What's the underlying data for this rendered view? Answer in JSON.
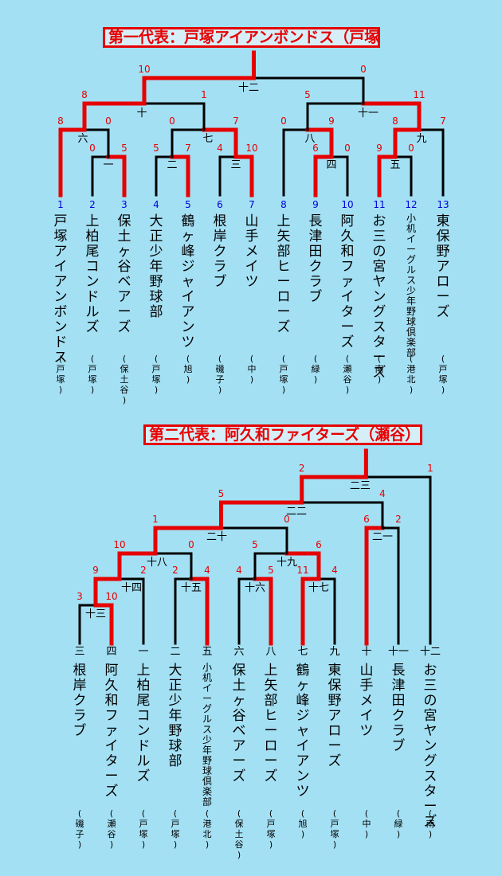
{
  "bracket1": {
    "title": "第一代表：戸塚アイアンボンドス（戸塚）",
    "teams": [
      {
        "no": "1",
        "name": "戸塚アイアンボンドス",
        "region": "(戸塚)"
      },
      {
        "no": "2",
        "name": "上柏尾コンドルズ",
        "region": "(戸塚)"
      },
      {
        "no": "3",
        "name": "保土ヶ谷ベアーズ",
        "region": "(保土谷)"
      },
      {
        "no": "4",
        "name": "大正少年野球部",
        "region": "(戸塚)"
      },
      {
        "no": "5",
        "name": "鶴ヶ峰ジャイアンツ",
        "region": "(旭)"
      },
      {
        "no": "6",
        "name": "根岸クラブ",
        "region": "(磯子)"
      },
      {
        "no": "7",
        "name": "山手メイツ",
        "region": "(中)"
      },
      {
        "no": "8",
        "name": "上矢部ヒーローズ",
        "region": "(戸塚)"
      },
      {
        "no": "9",
        "name": "長津田クラブ",
        "region": "(緑)"
      },
      {
        "no": "10",
        "name": "阿久和ファイターズ",
        "region": "(瀬谷)"
      },
      {
        "no": "11",
        "name": "お三の宮ヤングスターズ",
        "region": "(南)"
      },
      {
        "no": "12",
        "name": "小机イーグルス少年野球倶楽部",
        "region": "(港北)"
      },
      {
        "no": "13",
        "name": "東保野アローズ",
        "region": "(戸塚)"
      }
    ],
    "games": [
      {
        "no": "一",
        "left": "0",
        "right": "5"
      },
      {
        "no": "二",
        "left": "5",
        "right": "7"
      },
      {
        "no": "三",
        "left": "4",
        "right": "10"
      },
      {
        "no": "四",
        "left": "6",
        "right": "0"
      },
      {
        "no": "五",
        "left": "9",
        "right": "0"
      },
      {
        "no": "六",
        "left": "8",
        "right": "0"
      },
      {
        "no": "七",
        "left": "0",
        "right": "7"
      },
      {
        "no": "八",
        "left": "0",
        "right": "9"
      },
      {
        "no": "九",
        "left": "8",
        "right": "7"
      },
      {
        "no": "十",
        "left": "8",
        "right": "1"
      },
      {
        "no": "十一",
        "left": "5",
        "right": "11"
      },
      {
        "no": "十二",
        "left": "10",
        "right": "0"
      }
    ]
  },
  "bracket2": {
    "title": "第二代表：阿久和ファイターズ（瀬谷）",
    "teams": [
      {
        "no": "三",
        "name": "根岸クラブ",
        "region": "(磯子)"
      },
      {
        "no": "四",
        "name": "阿久和ファイターズ",
        "region": "(瀬谷)"
      },
      {
        "no": "一",
        "name": "上柏尾コンドルズ",
        "region": "(戸塚)"
      },
      {
        "no": "二",
        "name": "大正少年野球部",
        "region": "(戸塚)"
      },
      {
        "no": "五",
        "name": "小机イーグルス少年野球倶楽部",
        "region": "(港北)"
      },
      {
        "no": "六",
        "name": "保土ヶ谷ベアーズ",
        "region": "(保土谷)"
      },
      {
        "no": "八",
        "name": "上矢部ヒーローズ",
        "region": "(戸塚)"
      },
      {
        "no": "七",
        "name": "鶴ヶ峰ジャイアンツ",
        "region": "(旭)"
      },
      {
        "no": "九",
        "name": "東保野アローズ",
        "region": "(戸塚)"
      },
      {
        "no": "十",
        "name": "山手メイツ",
        "region": "(中)"
      },
      {
        "no": "十一",
        "name": "長津田クラブ",
        "region": "(緑)"
      },
      {
        "no": "十二",
        "name": "お三の宮ヤングスターズ",
        "region": "(南)"
      }
    ],
    "games": [
      {
        "no": "十三",
        "left": "3",
        "right": "10"
      },
      {
        "no": "十四",
        "left": "9",
        "right": "2"
      },
      {
        "no": "十五",
        "left": "2",
        "right": "4"
      },
      {
        "no": "十六",
        "left": "4",
        "right": "5"
      },
      {
        "no": "十七",
        "left": "11",
        "right": "4"
      },
      {
        "no": "十八",
        "left": "10",
        "right": "0"
      },
      {
        "no": "十九",
        "left": "5",
        "right": "6"
      },
      {
        "no": "二十",
        "left": "1",
        "right": "0"
      },
      {
        "no": "二一",
        "left": "6",
        "right": "2"
      },
      {
        "no": "二二",
        "left": "5",
        "right": "4"
      },
      {
        "no": "二三",
        "left": "2",
        "right": "1"
      }
    ]
  },
  "colors": {
    "background": "#a3e0f4",
    "winner_line": "#e60000",
    "loser_line": "#000000",
    "score": "#e60000",
    "entry_number": "#0000dd"
  }
}
